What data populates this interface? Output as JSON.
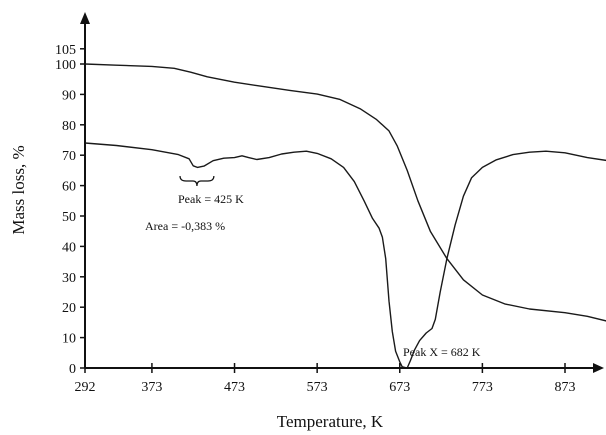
{
  "chart_data": {
    "type": "line",
    "xlabel": "Temperature, K",
    "ylabel": "Mass loss, %",
    "xlim": [
      292,
      960
    ],
    "ylim": [
      0,
      105
    ],
    "x_ticks": [
      292,
      373,
      473,
      573,
      673,
      773,
      873
    ],
    "y_ticks": [
      0,
      10,
      20,
      30,
      40,
      50,
      60,
      70,
      80,
      90,
      100,
      105
    ],
    "grid": false,
    "legend": "none",
    "line_color": "#1a1a1a",
    "series": [
      {
        "points": [
          [
            292,
            100
          ],
          [
            330,
            99.6
          ],
          [
            373,
            99.2
          ],
          [
            400,
            98.6
          ],
          [
            420,
            97.3
          ],
          [
            440,
            95.8
          ],
          [
            473,
            94
          ],
          [
            500,
            92.9
          ],
          [
            540,
            91.3
          ],
          [
            573,
            90.1
          ],
          [
            600,
            88.4
          ],
          [
            625,
            85.3
          ],
          [
            645,
            81.7
          ],
          [
            660,
            78
          ],
          [
            670,
            73
          ],
          [
            682,
            65
          ],
          [
            695,
            55
          ],
          [
            710,
            45
          ],
          [
            730,
            36
          ],
          [
            750,
            29
          ],
          [
            773,
            24
          ],
          [
            800,
            21.1
          ],
          [
            830,
            19.4
          ],
          [
            873,
            18.2
          ],
          [
            900,
            17
          ],
          [
            930,
            15
          ],
          [
            955,
            13
          ]
        ]
      },
      {
        "points": [
          [
            292,
            74
          ],
          [
            330,
            73.2
          ],
          [
            373,
            71.8
          ],
          [
            405,
            70.2
          ],
          [
            418,
            68.8
          ],
          [
            423,
            66.5
          ],
          [
            428,
            66
          ],
          [
            436,
            66.4
          ],
          [
            447,
            68.2
          ],
          [
            460,
            69
          ],
          [
            473,
            69.2
          ],
          [
            482,
            69.8
          ],
          [
            490,
            69.2
          ],
          [
            500,
            68.6
          ],
          [
            515,
            69.2
          ],
          [
            530,
            70.4
          ],
          [
            545,
            71
          ],
          [
            560,
            71.3
          ],
          [
            573,
            70.6
          ],
          [
            590,
            68.8
          ],
          [
            605,
            66
          ],
          [
            618,
            61.3
          ],
          [
            630,
            54.9
          ],
          [
            640,
            49.2
          ],
          [
            648,
            46
          ],
          [
            652,
            43
          ],
          [
            656,
            36
          ],
          [
            660,
            22
          ],
          [
            664,
            12
          ],
          [
            668,
            5.5
          ],
          [
            673,
            2
          ],
          [
            676,
            0.4
          ],
          [
            682,
            0
          ],
          [
            686,
            2.5
          ],
          [
            691,
            6
          ],
          [
            697,
            9
          ],
          [
            705,
            11.5
          ],
          [
            712,
            13
          ],
          [
            716,
            16
          ],
          [
            722,
            25
          ],
          [
            730,
            36
          ],
          [
            740,
            47
          ],
          [
            750,
            56.5
          ],
          [
            760,
            62.6
          ],
          [
            773,
            66
          ],
          [
            790,
            68.5
          ],
          [
            810,
            70.2
          ],
          [
            830,
            71
          ],
          [
            850,
            71.3
          ],
          [
            873,
            70.8
          ],
          [
            900,
            69.2
          ],
          [
            930,
            68
          ],
          [
            955,
            67.2
          ]
        ]
      }
    ],
    "annotations": {
      "peak1": "Peak = 425 K",
      "area": "Area = -0,383 %",
      "peak_x": "Peak X = 682 K"
    }
  }
}
